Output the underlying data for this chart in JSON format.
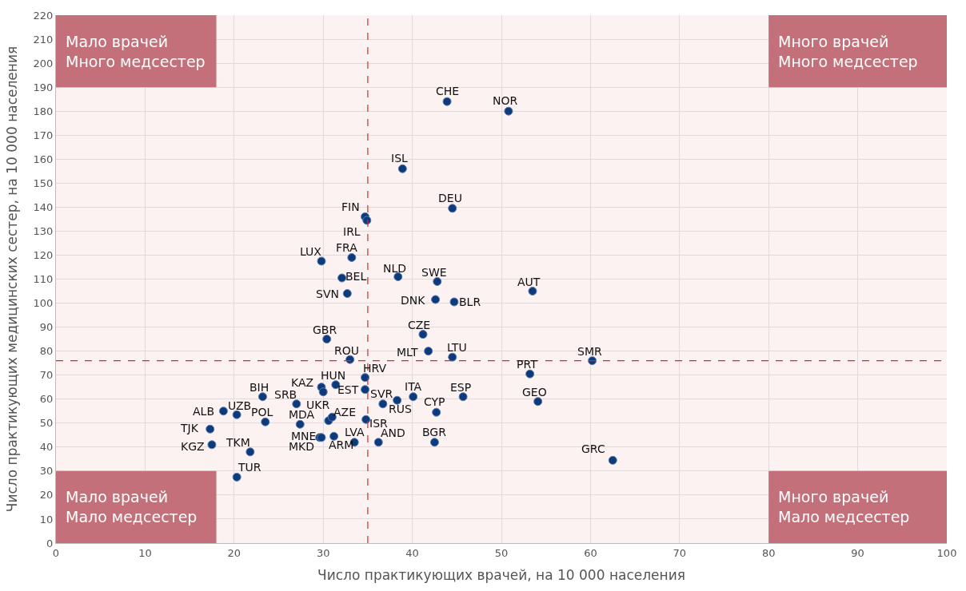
{
  "chart_data": {
    "type": "scatter",
    "xlabel": "Число практикующих врачей, на 10 000 населения",
    "ylabel": "Число практикующих медицинских сестер, на 10 000 населения",
    "xlim": [
      0,
      100
    ],
    "xticks": [
      0,
      10,
      20,
      30,
      40,
      50,
      60,
      70,
      80,
      90,
      100
    ],
    "ylim": [
      0,
      220
    ],
    "yticks": [
      0,
      10,
      20,
      30,
      40,
      50,
      60,
      70,
      80,
      90,
      100,
      110,
      120,
      130,
      140,
      150,
      160,
      170,
      180,
      190,
      200,
      210,
      220
    ],
    "grid": true,
    "legend": false,
    "marker": "circle",
    "ref_lines": [
      {
        "axis": "x",
        "value": 35,
        "color": "#e8231e",
        "line_style": "dashed"
      },
      {
        "axis": "y",
        "value": 76,
        "color": "#e8231e",
        "line_style": "dashed"
      }
    ],
    "annotations": [
      "Мало врачей\nМного медсестер",
      "Много врачей\nМного медсестер",
      "Мало врачей\nМало медсестер",
      "Много врачей\nМало медсестер"
    ],
    "series": [
      {
        "name": "CHE",
        "color": "#0d3a7a",
        "x": [
          43.9
        ],
        "values": [
          184
        ]
      },
      {
        "name": "NOR",
        "color": "#0d3a7a",
        "x": [
          50.8
        ],
        "values": [
          180
        ]
      },
      {
        "name": "ISL",
        "color": "#0d3a7a",
        "x": [
          38.9
        ],
        "values": [
          156
        ]
      },
      {
        "name": "DEU",
        "color": "#0d3a7a",
        "x": [
          44.5
        ],
        "values": [
          139.5
        ]
      },
      {
        "name": "FIN",
        "color": "#0d3a7a",
        "x": [
          34.7
        ],
        "values": [
          136
        ]
      },
      {
        "name": "IRL",
        "color": "#0d3a7a",
        "x": [
          34.9
        ],
        "values": [
          134.5
        ]
      },
      {
        "name": "LUX",
        "color": "#0d3a7a",
        "x": [
          29.8
        ],
        "values": [
          117.5
        ]
      },
      {
        "name": "FRA",
        "color": "#0d3a7a",
        "x": [
          33.2
        ],
        "values": [
          119
        ]
      },
      {
        "name": "BEL",
        "color": "#0d3a7a",
        "x": [
          32.1
        ],
        "values": [
          110.5
        ]
      },
      {
        "name": "NLD",
        "color": "#0d3a7a",
        "x": [
          38.4
        ],
        "values": [
          111
        ]
      },
      {
        "name": "SWE",
        "color": "#0d3a7a",
        "x": [
          42.8
        ],
        "values": [
          109
        ]
      },
      {
        "name": "SVN",
        "color": "#0d3a7a",
        "x": [
          32.7
        ],
        "values": [
          104
        ]
      },
      {
        "name": "DNK",
        "color": "#0d3a7a",
        "x": [
          42.6
        ],
        "values": [
          101.5
        ]
      },
      {
        "name": "BLR",
        "color": "#0d3a7a",
        "x": [
          44.7
        ],
        "values": [
          100.5
        ]
      },
      {
        "name": "AUT",
        "color": "#0d3a7a",
        "x": [
          53.5
        ],
        "values": [
          105
        ]
      },
      {
        "name": "CZE",
        "color": "#0d3a7a",
        "x": [
          41.2
        ],
        "values": [
          87
        ]
      },
      {
        "name": "GBR",
        "color": "#0d3a7a",
        "x": [
          30.4
        ],
        "values": [
          85
        ]
      },
      {
        "name": "MLT",
        "color": "#0d3a7a",
        "x": [
          41.8
        ],
        "values": [
          80
        ]
      },
      {
        "name": "LTU",
        "color": "#0d3a7a",
        "x": [
          44.5
        ],
        "values": [
          77.5
        ]
      },
      {
        "name": "ROU",
        "color": "#0d3a7a",
        "x": [
          33.0
        ],
        "values": [
          76.5
        ]
      },
      {
        "name": "SMR",
        "color": "#0d3a7a",
        "x": [
          60.2
        ],
        "values": [
          76
        ]
      },
      {
        "name": "PRT",
        "color": "#0d3a7a",
        "x": [
          53.2
        ],
        "values": [
          70.5
        ]
      },
      {
        "name": "HRV",
        "color": "#0d3a7a",
        "x": [
          34.7
        ],
        "values": [
          69
        ]
      },
      {
        "name": "HUN",
        "color": "#0d3a7a",
        "x": [
          31.4
        ],
        "values": [
          66
        ]
      },
      {
        "name": "KAZ",
        "color": "#0d3a7a",
        "x": [
          29.8
        ],
        "values": [
          65
        ]
      },
      {
        "color": "#0d3a7a",
        "x": [
          30.0
        ],
        "values": [
          63
        ]
      },
      {
        "name": "EST",
        "color": "#0d3a7a",
        "x": [
          34.7
        ],
        "values": [
          64
        ]
      },
      {
        "name": "SVR",
        "color": "#0d3a7a",
        "x": [
          36.7
        ],
        "values": [
          58
        ]
      },
      {
        "name": "RUS",
        "color": "#0d3a7a",
        "x": [
          38.3
        ],
        "values": [
          59.5
        ]
      },
      {
        "name": "ITA",
        "color": "#0d3a7a",
        "x": [
          40.1
        ],
        "values": [
          61
        ]
      },
      {
        "name": "ESP",
        "color": "#0d3a7a",
        "x": [
          45.7
        ],
        "values": [
          61
        ]
      },
      {
        "name": "GEO",
        "color": "#0d3a7a",
        "x": [
          54.1
        ],
        "values": [
          59
        ]
      },
      {
        "name": "BIH",
        "color": "#0d3a7a",
        "x": [
          23.2
        ],
        "values": [
          61
        ]
      },
      {
        "name": "SRB",
        "color": "#0d3a7a",
        "x": [
          27.0
        ],
        "values": [
          58
        ]
      },
      {
        "name": "UZB",
        "color": "#0d3a7a",
        "x": [
          20.3
        ],
        "values": [
          53.5
        ]
      },
      {
        "name": "ALB",
        "color": "#0d3a7a",
        "x": [
          18.8
        ],
        "values": [
          55
        ]
      },
      {
        "name": "POL",
        "color": "#0d3a7a",
        "x": [
          23.5
        ],
        "values": [
          50.5
        ]
      },
      {
        "name": "UKR",
        "color": "#0d3a7a",
        "x": [
          30.6
        ],
        "values": [
          51
        ]
      },
      {
        "name": "AZE",
        "color": "#0d3a7a",
        "x": [
          31.0
        ],
        "values": [
          52.5
        ]
      },
      {
        "name": "MDA",
        "color": "#0d3a7a",
        "x": [
          27.4
        ],
        "values": [
          49.5
        ]
      },
      {
        "name": "ISR",
        "color": "#0d3a7a",
        "x": [
          34.8
        ],
        "values": [
          51.5
        ]
      },
      {
        "name": "TJK",
        "color": "#0d3a7a",
        "x": [
          17.3
        ],
        "values": [
          47.5
        ]
      },
      {
        "name": "KGZ",
        "color": "#0d3a7a",
        "x": [
          17.5
        ],
        "values": [
          41
        ]
      },
      {
        "name": "TKM",
        "color": "#0d3a7a",
        "x": [
          21.8
        ],
        "values": [
          38
        ]
      },
      {
        "name": "TUR",
        "color": "#0d3a7a",
        "x": [
          20.3
        ],
        "values": [
          27.5
        ]
      },
      {
        "name": "MNE",
        "color": "#0d3a7a",
        "x": [
          29.6
        ],
        "values": [
          44
        ]
      },
      {
        "name": "MKD",
        "color": "#0d3a7a",
        "x": [
          29.8
        ],
        "values": [
          44
        ]
      },
      {
        "name": "ARM",
        "color": "#0d3a7a",
        "x": [
          31.2
        ],
        "values": [
          44.5
        ]
      },
      {
        "name": "LVA",
        "color": "#0d3a7a",
        "x": [
          33.5
        ],
        "values": [
          42
        ]
      },
      {
        "name": "AND",
        "color": "#0d3a7a",
        "x": [
          36.2
        ],
        "values": [
          42
        ]
      },
      {
        "name": "BGR",
        "color": "#0d3a7a",
        "x": [
          42.5
        ],
        "values": [
          42
        ]
      },
      {
        "name": "CYP",
        "color": "#0d3a7a",
        "x": [
          42.7
        ],
        "values": [
          54.5
        ]
      },
      {
        "name": "GRC",
        "color": "#0d3a7a",
        "x": [
          62.5
        ],
        "values": [
          34.5
        ]
      }
    ]
  }
}
